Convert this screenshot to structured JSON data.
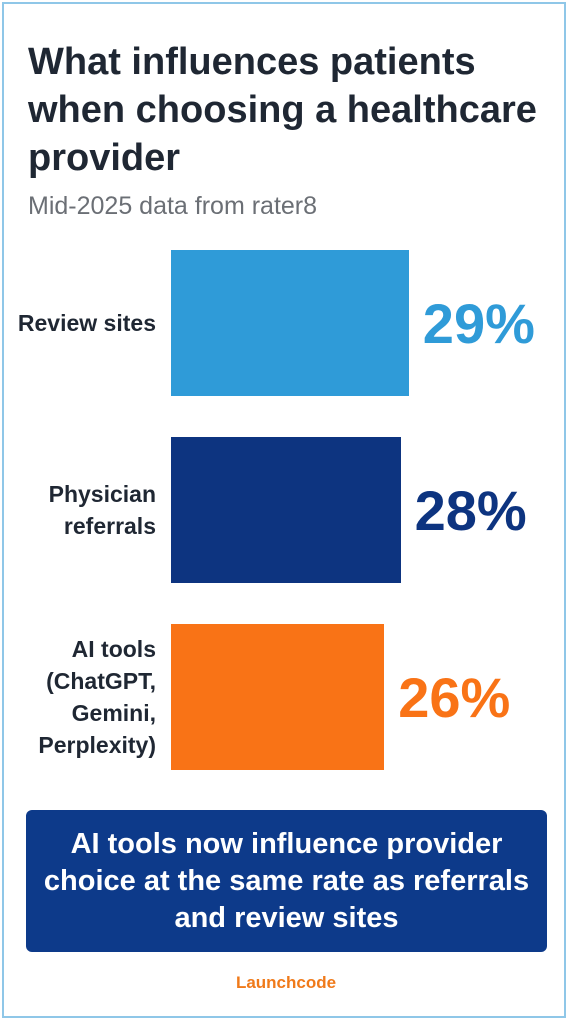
{
  "chart_data": {
    "type": "hbar",
    "title": "What influences patients when choosing a healthcare provider",
    "subtitle": "Mid-2025 data from rater8",
    "categories": [
      "Review sites",
      "Physician referrals",
      "AI tools (ChatGPT, Gemini, Perplexity)"
    ],
    "values": [
      29,
      28,
      26
    ],
    "value_labels": [
      "29%",
      "28%",
      "26%"
    ],
    "colors": [
      "#2f9bd8",
      "#0d3480",
      "#f97316"
    ],
    "callout": "AI tools now influence provider choice at the same rate as referrals and review sites",
    "brand": "Launchcode"
  }
}
